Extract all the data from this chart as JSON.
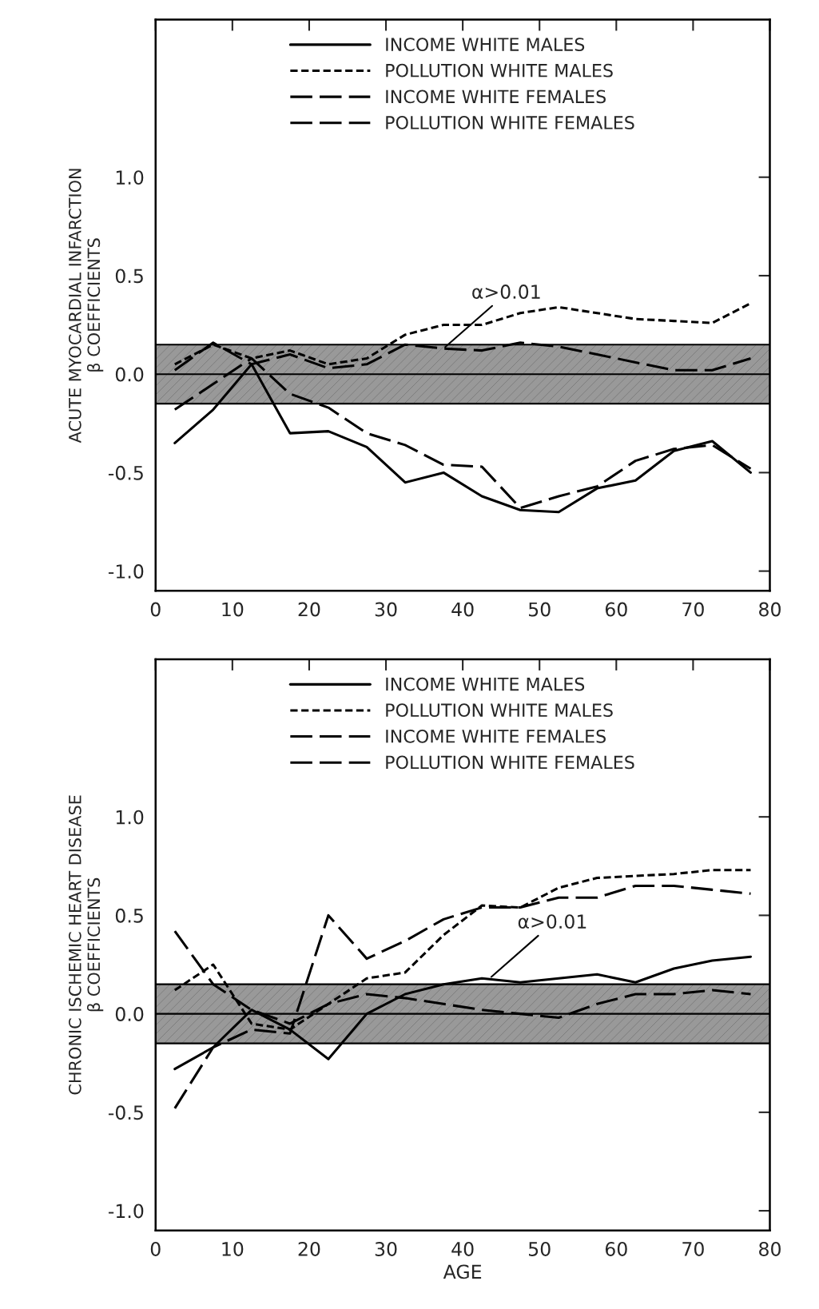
{
  "chart_data": [
    {
      "type": "line",
      "ylabel": "ACUTE MYOCARDIAL INFARCTION\nβ COEFFICIENTS",
      "x": [
        2.5,
        7.5,
        12.5,
        17.5,
        22.5,
        27.5,
        32.5,
        37.5,
        42.5,
        47.5,
        52.5,
        57.5,
        62.5,
        67.5,
        72.5,
        77.5
      ],
      "series": [
        {
          "name": "INCOME WHITE MALES",
          "color": "#000000",
          "line_style": "solid",
          "values": [
            -0.35,
            -0.18,
            0.05,
            -0.3,
            -0.29,
            -0.37,
            -0.55,
            -0.5,
            -0.62,
            -0.69,
            -0.7,
            -0.58,
            -0.54,
            -0.39,
            -0.34,
            -0.5
          ]
        },
        {
          "name": "POLLUTION WHITE MALES",
          "color": "#000000",
          "line_style": "dotted",
          "values": [
            0.05,
            0.15,
            0.08,
            0.12,
            0.05,
            0.08,
            0.2,
            0.25,
            0.25,
            0.31,
            0.34,
            0.31,
            0.28,
            0.27,
            0.26,
            0.36
          ]
        },
        {
          "name": "INCOME WHITE FEMALES",
          "color": "#000000",
          "line_style": "dashed",
          "values": [
            -0.18,
            -0.05,
            0.08,
            -0.1,
            -0.17,
            -0.3,
            -0.36,
            -0.46,
            -0.47,
            -0.68,
            -0.62,
            -0.57,
            -0.44,
            -0.38,
            -0.36,
            -0.48
          ]
        },
        {
          "name": "POLLUTION WHITE FEMALES",
          "color": "#000000",
          "line_style": "dashed",
          "values": [
            0.02,
            0.16,
            0.05,
            0.1,
            0.03,
            0.05,
            0.15,
            0.13,
            0.12,
            0.16,
            0.14,
            0.1,
            0.06,
            0.02,
            0.02,
            0.08
          ]
        }
      ],
      "xlim": [
        0,
        80
      ],
      "xticks": [
        0,
        10,
        20,
        30,
        40,
        50,
        60,
        70,
        80
      ],
      "ylim": [
        -1.1,
        1.8
      ],
      "yticks": [
        {
          "value": 1,
          "label": "1.0"
        },
        {
          "value": 0.5,
          "label": "0.5"
        },
        {
          "value": 0,
          "label": "0.0"
        },
        {
          "value": -0.5,
          "label": "-0.5"
        },
        {
          "value": -1,
          "label": "-1.0"
        }
      ],
      "bands": [
        {
          "axis": "y",
          "from": -0.15,
          "to": 0.15,
          "color": "#999999"
        }
      ],
      "ref_lines": [
        {
          "axis": "y",
          "value": 0,
          "color": "#000000"
        }
      ],
      "annotations": [
        {
          "text": "α>0.01",
          "x": 37.5,
          "y": 0.13
        }
      ],
      "legend": "top",
      "grid": false
    },
    {
      "type": "line",
      "ylabel": "CHRONIC ISCHEMIC HEART DISEASE\nβ COEFFICIENTS",
      "xlabel": "AGE",
      "x": [
        2.5,
        7.5,
        12.5,
        17.5,
        22.5,
        27.5,
        32.5,
        37.5,
        42.5,
        47.5,
        52.5,
        57.5,
        62.5,
        67.5,
        72.5,
        77.5
      ],
      "series": [
        {
          "name": "INCOME WHITE MALES",
          "color": "#000000",
          "line_style": "solid",
          "values": [
            -0.28,
            -0.17,
            0.02,
            -0.08,
            -0.23,
            0.0,
            0.1,
            0.15,
            0.18,
            0.16,
            0.18,
            0.2,
            0.16,
            0.23,
            0.27,
            0.29
          ]
        },
        {
          "name": "POLLUTION WHITE MALES",
          "color": "#000000",
          "line_style": "dotted",
          "values": [
            0.12,
            0.25,
            -0.05,
            -0.08,
            0.05,
            0.18,
            0.21,
            0.4,
            0.55,
            0.54,
            0.64,
            0.69,
            0.7,
            0.71,
            0.73,
            0.73
          ]
        },
        {
          "name": "INCOME WHITE FEMALES",
          "color": "#000000",
          "line_style": "dashed",
          "values": [
            -0.48,
            -0.17,
            -0.08,
            -0.1,
            0.5,
            0.28,
            0.37,
            0.48,
            0.54,
            0.54,
            0.59,
            0.59,
            0.65,
            0.65,
            0.63,
            0.61
          ]
        },
        {
          "name": "POLLUTION WHITE FEMALES",
          "color": "#000000",
          "line_style": "dashed",
          "values": [
            0.42,
            0.15,
            0.02,
            -0.05,
            0.05,
            0.1,
            0.08,
            0.05,
            0.02,
            0.0,
            -0.02,
            0.05,
            0.1,
            0.1,
            0.12,
            0.1
          ]
        }
      ],
      "xlim": [
        0,
        80
      ],
      "xticks": [
        0,
        10,
        20,
        30,
        40,
        50,
        60,
        70,
        80
      ],
      "ylim": [
        -1.1,
        1.8
      ],
      "yticks": [
        {
          "value": 1,
          "label": "1.0"
        },
        {
          "value": 0.5,
          "label": "0.5"
        },
        {
          "value": 0,
          "label": "0.0"
        },
        {
          "value": -0.5,
          "label": "-0.5"
        },
        {
          "value": -1,
          "label": "-1.0"
        }
      ],
      "bands": [
        {
          "axis": "y",
          "from": -0.15,
          "to": 0.15,
          "color": "#999999"
        }
      ],
      "ref_lines": [
        {
          "axis": "y",
          "value": 0,
          "color": "#000000"
        }
      ],
      "annotations": [
        {
          "text": "α>0.01",
          "x": 43.5,
          "y": 0.18
        }
      ],
      "legend": "top",
      "grid": false
    }
  ]
}
